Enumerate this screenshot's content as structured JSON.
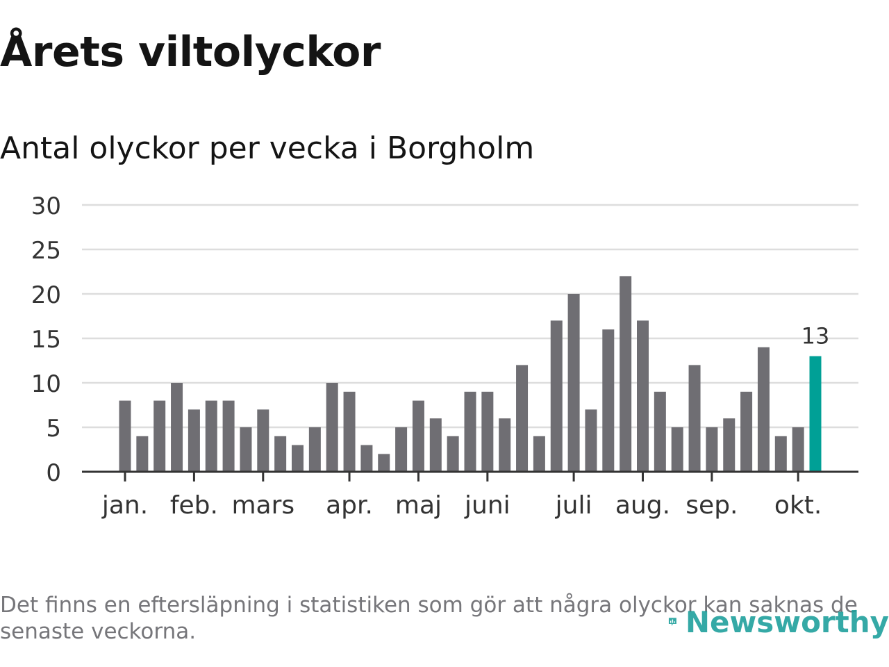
{
  "header": {
    "title": "Årets viltolyckor",
    "subtitle": "Antal olyckor per vecka i Borgholm"
  },
  "footer": {
    "note": "Det finns en eftersläpning i statistiken som gör att några olyckor kan saknas de senaste veckorna.",
    "brand": "Newsworthy"
  },
  "colors": {
    "bar": "#6f6e73",
    "highlight": "#00a096",
    "grid": "#dddddd",
    "axis": "#333333",
    "text": "#333333"
  },
  "chart_data": {
    "type": "bar",
    "title": "Antal olyckor per vecka i Borgholm",
    "xlabel": "",
    "ylabel": "",
    "ylim": [
      0,
      30
    ],
    "yticks": [
      0,
      5,
      10,
      15,
      20,
      25,
      30
    ],
    "grid": true,
    "values": [
      8,
      4,
      8,
      10,
      7,
      8,
      8,
      5,
      7,
      4,
      3,
      5,
      10,
      9,
      3,
      2,
      5,
      8,
      6,
      4,
      9,
      9,
      6,
      12,
      4,
      17,
      20,
      7,
      16,
      22,
      17,
      9,
      5,
      12,
      5,
      6,
      9,
      14,
      4,
      5,
      13
    ],
    "highlight_index": 40,
    "highlight_label": "13",
    "month_labels": [
      {
        "label": "jan.",
        "week": 1
      },
      {
        "label": "feb.",
        "week": 5
      },
      {
        "label": "mars",
        "week": 9
      },
      {
        "label": "apr.",
        "week": 14
      },
      {
        "label": "maj",
        "week": 18
      },
      {
        "label": "juni",
        "week": 22
      },
      {
        "label": "juli",
        "week": 27
      },
      {
        "label": "aug.",
        "week": 31
      },
      {
        "label": "sep.",
        "week": 35
      },
      {
        "label": "okt.",
        "week": 40
      }
    ]
  }
}
